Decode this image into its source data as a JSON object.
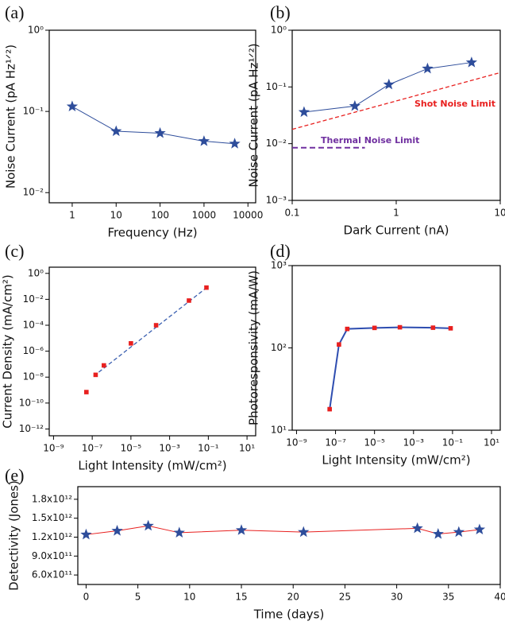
{
  "chart_data": [
    {
      "type": "line",
      "panel": "(a)",
      "x_label": "Frequency (Hz)",
      "y_label": "Noise Current (pA Hz¹ᐟ²)",
      "xlog": true,
      "ylog": true,
      "xlim": [
        0.3,
        15000
      ],
      "ylim": [
        0.0075,
        1
      ],
      "xticks": [
        1,
        10,
        100,
        1000,
        10000
      ],
      "yticks": [
        {
          "value": 0.01,
          "label": "10⁻²"
        },
        {
          "value": 0.1,
          "label": "10⁻¹"
        },
        {
          "value": 1,
          "label": "10⁰"
        }
      ],
      "x": [
        1,
        10,
        100,
        1000,
        5000
      ],
      "series": [
        {
          "values": [
            0.115,
            0.057,
            0.054,
            0.043,
            0.04
          ],
          "color": "#2e4d9b",
          "marker": "star",
          "marker_color": "#2e4d9b"
        }
      ]
    },
    {
      "type": "line",
      "panel": "(b)",
      "x_label": "Dark Current (nA)",
      "y_label": "Noise Current (pA Hz¹ᐟ²)",
      "xlog": true,
      "ylog": true,
      "xlim": [
        0.1,
        10
      ],
      "ylim": [
        0.001,
        1
      ],
      "xticks": [
        0.1,
        1,
        10
      ],
      "yticks": [
        {
          "value": 0.001,
          "label": "10⁻³"
        },
        {
          "value": 0.01,
          "label": "10⁻²"
        },
        {
          "value": 0.1,
          "label": "10⁻¹"
        },
        {
          "value": 1,
          "label": "10⁰"
        }
      ],
      "x": [
        0.13,
        0.4,
        0.85,
        2,
        5.3
      ],
      "series": [
        {
          "values": [
            0.036,
            0.046,
            0.11,
            0.21,
            0.27
          ],
          "color": "#2e4d9b",
          "marker": "star",
          "marker_color": "#2e4d9b"
        }
      ],
      "reference_lines": [
        {
          "label": "Shot Noise Limit",
          "x": [
            0.1,
            10
          ],
          "values": [
            0.0179,
            0.179
          ],
          "color": "#e8201f"
        },
        {
          "label": "Thermal Noise Limit",
          "x": [
            0.1,
            0.5
          ],
          "values": [
            0.0085,
            0.0085
          ],
          "color": "#7030a0"
        }
      ]
    },
    {
      "type": "scatter",
      "panel": "(c)",
      "x_label": "Light Intensity (mW/cm²)",
      "y_label": "Current Density (mA/cm²)",
      "xlog": true,
      "ylog": true,
      "xlim": [
        6e-10,
        28
      ],
      "ylim": [
        3e-13,
        3
      ],
      "xticks": [
        {
          "value": 1e-09,
          "label": "10⁻⁹"
        },
        {
          "value": 1e-07,
          "label": "10⁻⁷"
        },
        {
          "value": 1e-05,
          "label": "10⁻⁵"
        },
        {
          "value": 0.001,
          "label": "10⁻³"
        },
        {
          "value": 0.1,
          "label": "10⁻¹"
        },
        {
          "value": 10,
          "label": "10¹"
        }
      ],
      "yticks": [
        {
          "value": 1e-12,
          "label": "10⁻¹²"
        },
        {
          "value": 1e-10,
          "label": "10⁻¹⁰"
        },
        {
          "value": 1e-08,
          "label": "10⁻⁸"
        },
        {
          "value": 1e-06,
          "label": "10⁻⁶"
        },
        {
          "value": 0.0001,
          "label": "10⁻⁴"
        },
        {
          "value": 0.01,
          "label": "10⁻²"
        },
        {
          "value": 1,
          "label": "10⁰"
        }
      ],
      "x": [
        5e-08,
        1.5e-07,
        4e-07,
        1e-05,
        0.0002,
        0.01,
        0.08
      ],
      "series": [
        {
          "values": [
            7e-10,
            1.5e-08,
            8e-08,
            4e-06,
            0.0001,
            0.008,
            0.08
          ],
          "marker": "square",
          "marker_color": "#e8201f"
        }
      ],
      "fit": {
        "x": [
          1.2e-07,
          0.1
        ],
        "values": [
          1.2e-08,
          0.1
        ],
        "color": "#3a5fb0"
      }
    },
    {
      "type": "line",
      "panel": "(d)",
      "x_label": "Light Intensity (mW/cm²)",
      "y_label": "Photoresponsivity (mA/W)",
      "xlog": true,
      "ylog": true,
      "xlim": [
        6e-10,
        28
      ],
      "ylim": [
        10,
        1000
      ],
      "xticks": [
        {
          "value": 1e-09,
          "label": "10⁻⁹"
        },
        {
          "value": 1e-07,
          "label": "10⁻⁷"
        },
        {
          "value": 1e-05,
          "label": "10⁻⁵"
        },
        {
          "value": 0.001,
          "label": "10⁻³"
        },
        {
          "value": 0.1,
          "label": "10⁻¹"
        },
        {
          "value": 10,
          "label": "10¹"
        }
      ],
      "yticks": [
        {
          "value": 10,
          "label": "10¹"
        },
        {
          "value": 100,
          "label": "10²"
        },
        {
          "value": 1000,
          "label": "10³"
        }
      ],
      "x": [
        5e-08,
        1.5e-07,
        4e-07,
        1e-05,
        0.0002,
        0.01,
        0.08
      ],
      "series": [
        {
          "values": [
            18,
            110,
            170,
            175,
            178,
            176,
            173
          ],
          "color": "#2e4db0",
          "marker": "square",
          "marker_color": "#e8201f"
        }
      ]
    },
    {
      "type": "line",
      "panel": "(e)",
      "x_label": "Time (days)",
      "y_label": "Detectivity (Jones)",
      "xlog": false,
      "ylog": false,
      "xlim": [
        -0.8,
        40
      ],
      "ylim": [
        450000000000,
        2000000000000
      ],
      "xticks": [
        0,
        5,
        10,
        15,
        20,
        25,
        30,
        35,
        40
      ],
      "yticks": [
        {
          "value": 600000000000,
          "label": "6.0x10¹¹"
        },
        {
          "value": 900000000000,
          "label": "9.0x10¹¹"
        },
        {
          "value": 1200000000000,
          "label": "1.2x10¹²"
        },
        {
          "value": 1500000000000,
          "label": "1.5x10¹²"
        },
        {
          "value": 1800000000000,
          "label": "1.8x10¹²"
        }
      ],
      "x": [
        0,
        3,
        6,
        9,
        15,
        21,
        32,
        34,
        36,
        38
      ],
      "series": [
        {
          "values": [
            1240000000000,
            1300000000000,
            1380000000000,
            1270000000000,
            1310000000000,
            1280000000000,
            1340000000000,
            1250000000000,
            1280000000000,
            1320000000000
          ],
          "color": "#e8201f",
          "marker": "star",
          "marker_color": "#2e4d9b"
        }
      ]
    }
  ]
}
